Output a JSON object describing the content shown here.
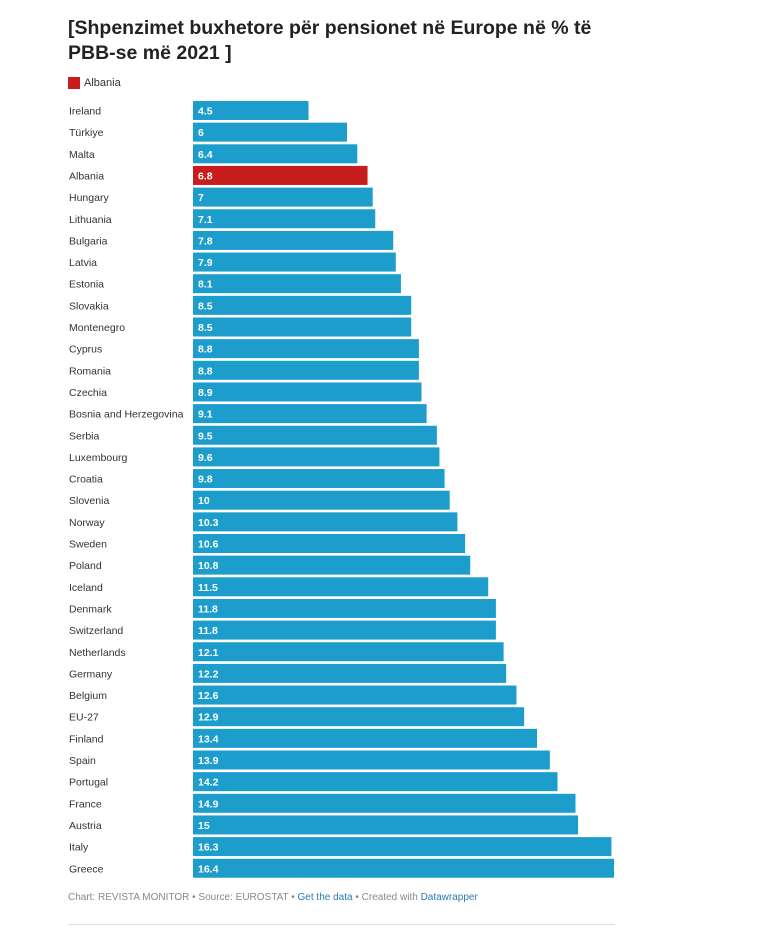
{
  "chart_data": {
    "type": "bar",
    "orientation": "horizontal",
    "title": "[Shpenzimet buxhetore për pensionet në Europe në % të PBB-se më 2021 ]",
    "legend": [
      {
        "name": "Albania",
        "color": "#c71e1d"
      }
    ],
    "default_color": "#1d9dcc",
    "highlight_category": "Albania",
    "highlight_color": "#c71e1d",
    "xlim": [
      0,
      16.4
    ],
    "grid": false,
    "categories": [
      "Ireland",
      "Türkiye",
      "Malta",
      "Albania",
      "Hungary",
      "Lithuania",
      "Bulgaria",
      "Latvia",
      "Estonia",
      "Slovakia",
      "Montenegro",
      "Cyprus",
      "Romania",
      "Czechia",
      "Bosnia and Herzegovina",
      "Serbia",
      "Luxembourg",
      "Croatia",
      "Slovenia",
      "Norway",
      "Sweden",
      "Poland",
      "Iceland",
      "Denmark",
      "Switzerland",
      "Netherlands",
      "Germany",
      "Belgium",
      "EU-27",
      "Finland",
      "Spain",
      "Portugal",
      "France",
      "Austria",
      "Italy",
      "Greece"
    ],
    "values": [
      4.5,
      6,
      6.4,
      6.8,
      7,
      7.1,
      7.8,
      7.9,
      8.1,
      8.5,
      8.5,
      8.8,
      8.8,
      8.9,
      9.1,
      9.5,
      9.6,
      9.8,
      10,
      10.3,
      10.6,
      10.8,
      11.5,
      11.8,
      11.8,
      12.1,
      12.2,
      12.6,
      12.9,
      13.4,
      13.9,
      14.2,
      14.9,
      15,
      16.3,
      16.4
    ]
  },
  "footer": {
    "chart_label": "Chart: REVISTA MONITOR",
    "source": "Source: EUROSTAT",
    "get_data": "Get the data",
    "created_with": "Created with",
    "tool": "Datawrapper",
    "separator": "•"
  }
}
